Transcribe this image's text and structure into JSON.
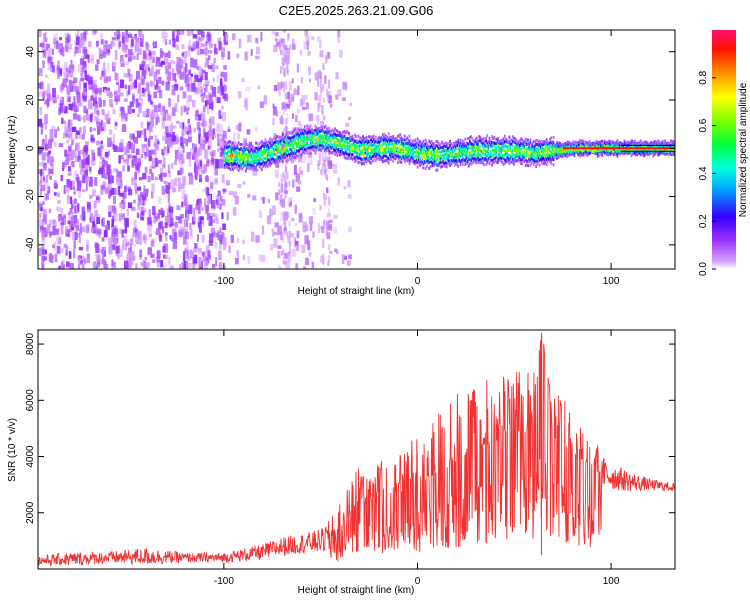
{
  "title": "C2E5.2025.263.21.09.G06",
  "colors": {
    "snr_line": "#f03232",
    "frame": "#000000",
    "background": "#ffffff"
  },
  "chart_data": [
    {
      "type": "heatmap",
      "title": "C2E5.2025.263.21.09.G06",
      "xlabel": "Height of straight line (km)",
      "ylabel": "Frequency (Hz)",
      "xlim": [
        -196,
        133
      ],
      "ylim": [
        -50,
        49
      ],
      "xticks": [
        -100,
        0,
        100
      ],
      "xtick_labels": [
        "-100",
        "0",
        "100"
      ],
      "yticks": [
        -40,
        -20,
        0,
        20,
        40
      ],
      "ytick_labels": [
        "-40",
        "-20",
        "0",
        "20",
        "40"
      ],
      "colorbar": {
        "label": "Normalized spectral amplitude",
        "range": [
          0,
          1
        ],
        "ticks": [
          0.0,
          0.2,
          0.4,
          0.6,
          0.8
        ],
        "tick_labels": [
          "0.0",
          "0.2",
          "0.4",
          "0.6",
          "0.8"
        ],
        "colormap": "rainbow"
      },
      "description_series": {
        "noise_region_x": [
          -196,
          -40
        ],
        "signal_start_x": -100,
        "ridge_x": [
          -100,
          -85,
          -70,
          -60,
          -50,
          -40,
          -30,
          -20,
          -10,
          0,
          10,
          20,
          30,
          40,
          50,
          60,
          70,
          80,
          90,
          100,
          110,
          120,
          133
        ],
        "ridge_frequency": [
          -3,
          -4,
          0,
          3,
          4,
          2,
          -1,
          0,
          0,
          -2,
          -3,
          -2,
          -1,
          -1,
          -1,
          -2,
          -1,
          0,
          0,
          0,
          0,
          0,
          0
        ]
      }
    },
    {
      "type": "line",
      "xlabel": "Height of straight line (km)",
      "ylabel": "SNR (10 * v/v)",
      "xlim": [
        -196,
        133
      ],
      "ylim": [
        0,
        8500
      ],
      "xticks": [
        -100,
        0,
        100
      ],
      "xtick_labels": [
        "-100",
        "0",
        "100"
      ],
      "yticks": [
        2000,
        4000,
        6000,
        8000
      ],
      "ytick_labels": [
        "2000",
        "4000",
        "6000",
        "8000"
      ],
      "series": [
        {
          "name": "SNR",
          "x": [
            -196,
            -180,
            -160,
            -140,
            -120,
            -100,
            -80,
            -70,
            -60,
            -50,
            -40,
            -30,
            -25,
            -20,
            -10,
            0,
            10,
            20,
            30,
            40,
            50,
            60,
            64,
            70,
            80,
            90,
            100,
            110,
            120,
            133
          ],
          "values": [
            300,
            350,
            400,
            450,
            400,
            400,
            600,
            800,
            900,
            1000,
            1300,
            2500,
            2200,
            2800,
            2600,
            3000,
            3400,
            3800,
            4200,
            4500,
            4700,
            5000,
            8400,
            4700,
            4200,
            3500,
            3300,
            3100,
            3000,
            2900
          ],
          "envelope_max": [
            550,
            700,
            700,
            900,
            650,
            650,
            1000,
            1300,
            1400,
            1600,
            2500,
            3800,
            3300,
            4000,
            4200,
            4800,
            5500,
            6300,
            6600,
            6900,
            7000,
            7400,
            8400,
            6600,
            5600,
            4600,
            4000,
            3600,
            3300,
            3100
          ]
        }
      ]
    }
  ]
}
